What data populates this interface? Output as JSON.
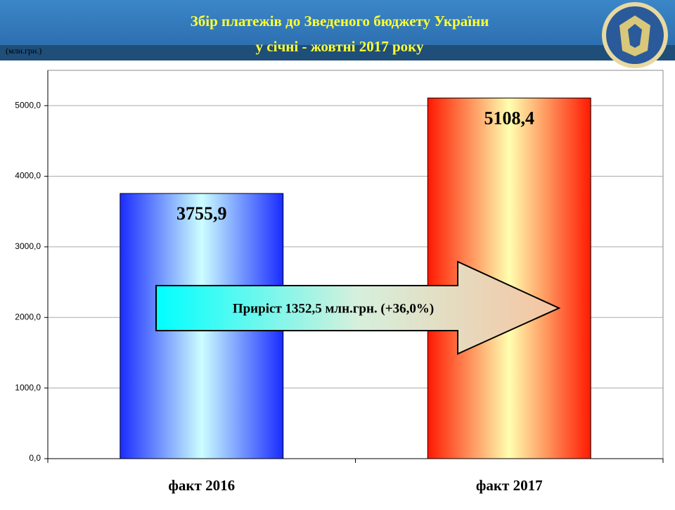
{
  "chart_data": {
    "type": "bar",
    "title": [
      "Збір платежів до Зведеного бюджету України",
      "у січні - жовтні 2017 року"
    ],
    "unit_label": "(млн.грн.)",
    "categories": [
      "факт 2016",
      "факт 2017"
    ],
    "values": [
      3755.9,
      5108.4
    ],
    "value_labels": [
      "3755,9",
      "5108,4"
    ],
    "colors": [
      "#1a2cff",
      "#ff1a00"
    ],
    "ylim": [
      0,
      5500
    ],
    "yticks": [
      {
        "value": 0,
        "label": "0,0"
      },
      {
        "value": 1000,
        "label": "1000,0"
      },
      {
        "value": 2000,
        "label": "2000,0"
      },
      {
        "value": 3000,
        "label": "3000,0"
      },
      {
        "value": 4000,
        "label": "4000,0"
      },
      {
        "value": 5000,
        "label": "5000,0"
      }
    ],
    "grid": true,
    "annotation": "Приріст 1352,5 млн.грн. (+36,0%)"
  }
}
